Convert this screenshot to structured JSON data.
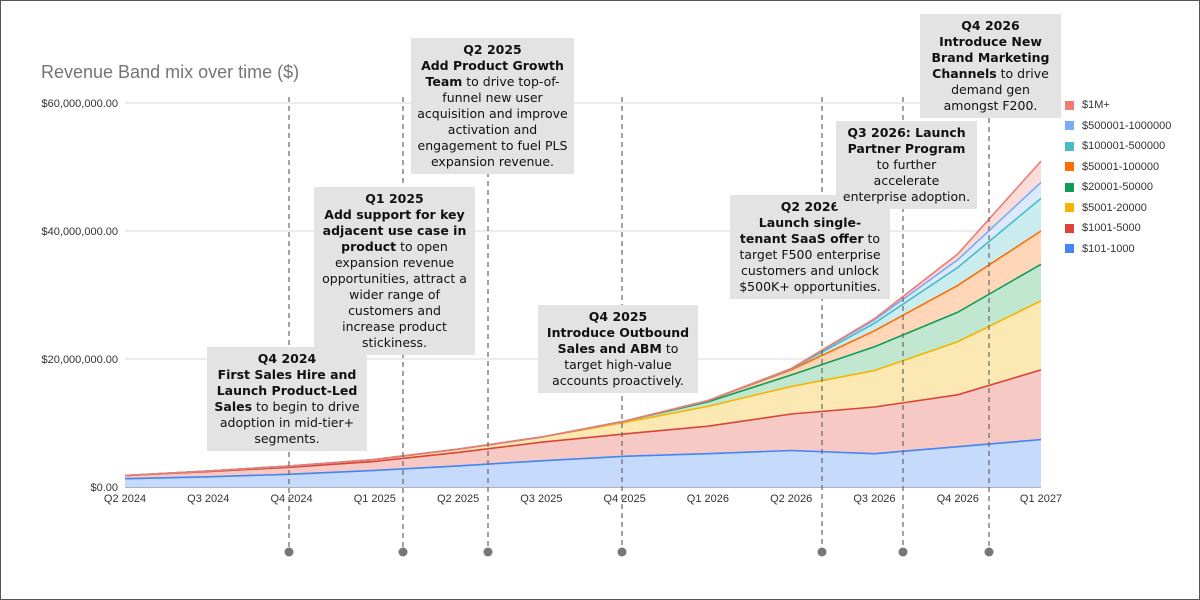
{
  "chart_data": {
    "type": "area",
    "stacked": true,
    "title": "Revenue Band mix over time ($)",
    "x": [
      "Q2 2024",
      "Q3 2024",
      "Q4 2024",
      "Q1 2025",
      "Q2 2025",
      "Q3 2025",
      "Q4 2025",
      "Q1 2026",
      "Q2 2026",
      "Q3 2026",
      "Q4 2026",
      "Q1 2027"
    ],
    "y_ticks": [
      "$0.00",
      "$20,000,000.00",
      "$40,000,000.00",
      "$60,000,000.00"
    ],
    "ylim": [
      0,
      60000000
    ],
    "grid": true,
    "legend_position": "right",
    "series": [
      {
        "name": "$101-1000",
        "color": "#4285f4",
        "fill": "#c6dafc",
        "values": [
          1300000,
          1600000,
          2000000,
          2600000,
          3300000,
          4100000,
          4800000,
          5200000,
          5700000,
          5200000,
          6300000,
          7400000
        ]
      },
      {
        "name": "$1001-5000",
        "color": "#db4437",
        "fill": "#f6c9c5",
        "values": [
          500000,
          800000,
          1100000,
          1400000,
          2100000,
          2900000,
          3500000,
          4300000,
          5700000,
          7300000,
          8100000,
          10900000
        ]
      },
      {
        "name": "$5001-20000",
        "color": "#f4b400",
        "fill": "#fce8b2",
        "values": [
          0,
          100000,
          200000,
          300000,
          500000,
          800000,
          1800000,
          3100000,
          4300000,
          5700000,
          8300000,
          10800000
        ]
      },
      {
        "name": "$20001-50000",
        "color": "#0f9d58",
        "fill": "#c2e7d0",
        "values": [
          0,
          0,
          0,
          0,
          0,
          0,
          200000,
          700000,
          1800000,
          3700000,
          4600000,
          5700000
        ]
      },
      {
        "name": "$50001-100000",
        "color": "#ff6d00",
        "fill": "#ffd7b8",
        "values": [
          0,
          0,
          0,
          0,
          0,
          0,
          0,
          200000,
          800000,
          2500000,
          4200000,
          5200000
        ]
      },
      {
        "name": "$100001-500000",
        "color": "#46bdc6",
        "fill": "#c9ecef",
        "values": [
          0,
          0,
          0,
          0,
          0,
          0,
          0,
          0,
          100000,
          1200000,
          2800000,
          5100000
        ]
      },
      {
        "name": "$500001-1000000",
        "color": "#7baaf7",
        "fill": "#dde9fd",
        "values": [
          0,
          0,
          0,
          0,
          0,
          0,
          0,
          0,
          100000,
          500000,
          1200000,
          2500000
        ]
      },
      {
        "name": "$1M+",
        "color": "#f07b72",
        "fill": "#fadcd9",
        "values": [
          0,
          0,
          0,
          0,
          0,
          0,
          0,
          0,
          0,
          200000,
          900000,
          3300000
        ]
      }
    ],
    "annotations": [
      {
        "heading": "Q4 2024",
        "bold": "First Sales Hire and Launch Product-Led Sales",
        "rest": " to begin to drive adoption in mid-tier+ segments."
      },
      {
        "heading": "Q1 2025",
        "bold": "Add support for key adjacent use case in product",
        "rest": " to open expansion revenue opportunities, attract a wider range of customers and increase product stickiness."
      },
      {
        "heading": "Q2 2025",
        "bold": "Add Product Growth Team",
        "rest": " to drive top-of-funnel new user acquisition and improve activation and engagement to fuel PLS expansion revenue."
      },
      {
        "heading": "Q4 2025",
        "bold": "Introduce Outbound Sales and ABM",
        "rest": " to target high-value accounts proactively."
      },
      {
        "heading": "Q2 2026",
        "bold": "Launch single-tenant SaaS offer",
        "rest": " to target F500 enterprise customers and unlock $500K+ opportunities."
      },
      {
        "heading": "",
        "bold": "Q3 2026: Launch Partner Program",
        "rest": " to further accelerate enterprise adoption."
      },
      {
        "heading": "Q4 2026",
        "bold": "Introduce New Brand Marketing Channels",
        "rest": " to drive demand gen amongst F200."
      }
    ]
  }
}
